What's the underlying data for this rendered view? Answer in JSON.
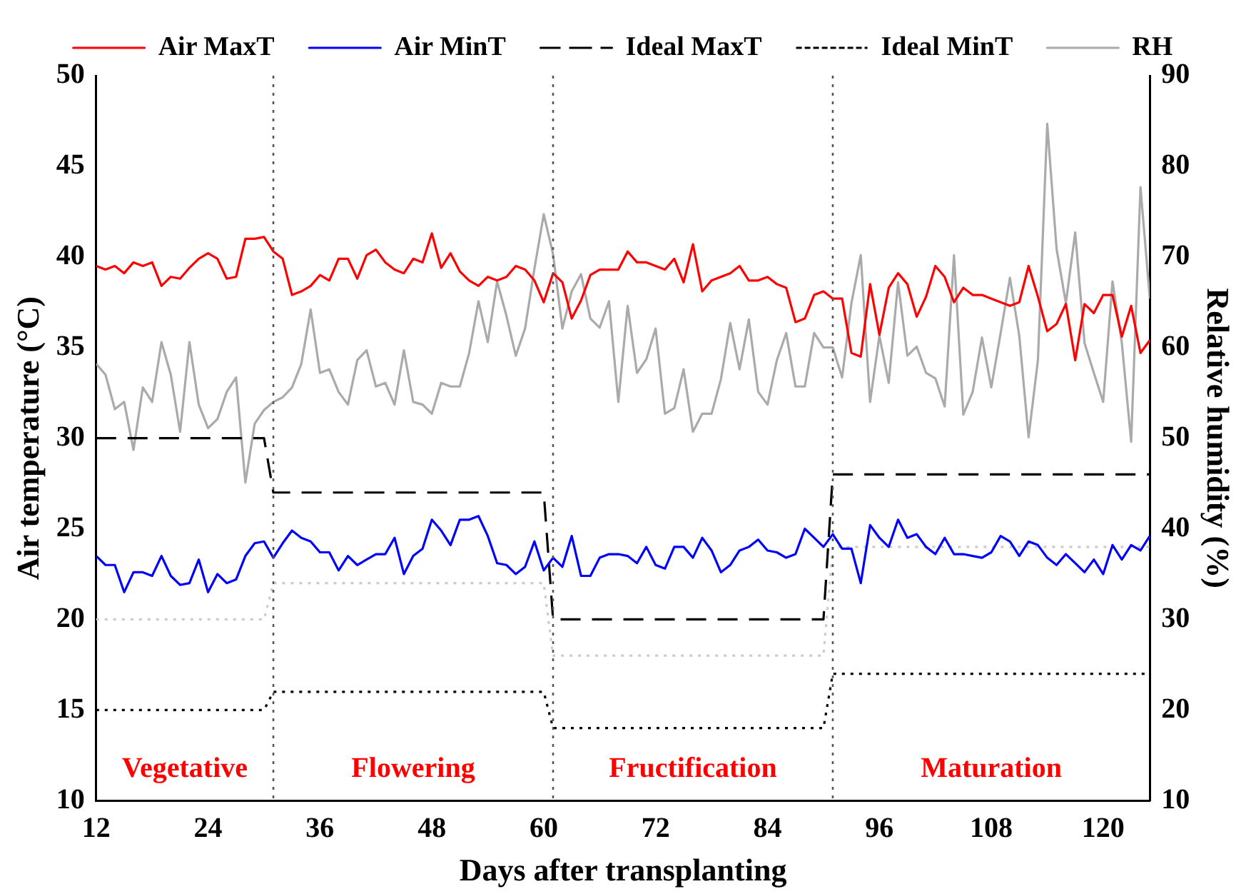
{
  "chart_data": {
    "type": "line",
    "xlabel": "Days after transplanting",
    "ylabel": "Air temperature (°C)",
    "y2label": "Relative humidity (%)",
    "x": [
      12,
      13,
      14,
      15,
      16,
      17,
      18,
      19,
      20,
      21,
      22,
      23,
      24,
      25,
      26,
      27,
      28,
      29,
      30,
      31,
      32,
      33,
      34,
      35,
      36,
      37,
      38,
      39,
      40,
      41,
      42,
      43,
      44,
      45,
      46,
      47,
      48,
      49,
      50,
      51,
      52,
      53,
      54,
      55,
      56,
      57,
      58,
      59,
      60,
      61,
      62,
      63,
      64,
      65,
      66,
      67,
      68,
      69,
      70,
      71,
      72,
      73,
      74,
      75,
      76,
      77,
      78,
      79,
      80,
      81,
      82,
      83,
      84,
      85,
      86,
      87,
      88,
      89,
      90,
      91,
      92,
      93,
      94,
      95,
      96,
      97,
      98,
      99,
      100,
      101,
      102,
      103,
      104,
      105,
      106,
      107,
      108,
      109,
      110,
      111,
      112,
      113,
      114,
      115,
      116,
      117,
      118,
      119,
      120,
      121,
      122,
      123,
      124,
      125
    ],
    "series": [
      {
        "name": "Air MaxT",
        "color": "#ff0000",
        "line_style": "solid",
        "values": [
          39.5,
          39.3,
          39.5,
          39.1,
          39.7,
          39.5,
          39.7,
          38.4,
          38.9,
          38.8,
          39.4,
          39.9,
          40.2,
          39.9,
          38.8,
          38.9,
          41.0,
          41.0,
          41.1,
          40.3,
          39.9,
          37.9,
          38.1,
          38.4,
          39.0,
          38.7,
          39.9,
          39.9,
          38.8,
          40.1,
          40.4,
          39.7,
          39.3,
          39.1,
          39.9,
          39.7,
          41.3,
          39.4,
          40.2,
          39.2,
          38.7,
          38.4,
          38.9,
          38.7,
          38.9,
          39.5,
          39.3,
          38.7,
          37.5,
          39.1,
          38.6,
          36.6,
          37.6,
          39.0,
          39.3,
          39.3,
          39.3,
          40.3,
          39.7,
          39.7,
          39.5,
          39.3,
          39.9,
          38.6,
          40.7,
          38.1,
          38.7,
          38.9,
          39.1,
          39.5,
          38.7,
          38.7,
          38.9,
          38.5,
          38.3,
          36.4,
          36.6,
          37.9,
          38.1,
          37.7,
          37.7,
          34.7,
          34.5,
          38.5,
          35.7,
          38.3,
          39.1,
          38.5,
          36.7,
          37.8,
          39.5,
          38.9,
          37.5,
          38.3,
          37.9,
          37.9,
          37.7,
          37.5,
          37.3,
          37.5,
          39.5,
          37.8,
          35.9,
          36.3,
          37.4,
          34.3,
          37.4,
          36.9,
          37.9,
          37.9,
          35.6,
          37.3,
          34.7,
          35.4
        ]
      },
      {
        "name": "Air MinT",
        "color": "#0000ff",
        "line_style": "solid",
        "values": [
          23.5,
          23.0,
          23.0,
          21.5,
          22.6,
          22.6,
          22.4,
          23.5,
          22.4,
          21.9,
          22.0,
          23.3,
          21.5,
          22.5,
          22.0,
          22.2,
          23.5,
          24.2,
          24.3,
          23.4,
          24.2,
          24.9,
          24.5,
          24.3,
          23.7,
          23.7,
          22.7,
          23.5,
          23.0,
          23.3,
          23.6,
          23.6,
          24.5,
          22.5,
          23.5,
          23.9,
          25.5,
          24.9,
          24.1,
          25.5,
          25.5,
          25.7,
          24.6,
          23.1,
          23.0,
          22.5,
          22.9,
          24.3,
          22.7,
          23.4,
          22.9,
          24.6,
          22.4,
          22.4,
          23.4,
          23.6,
          23.6,
          23.5,
          23.1,
          24.0,
          23.0,
          22.8,
          24.0,
          24.0,
          23.4,
          24.5,
          23.8,
          22.6,
          23.0,
          23.8,
          24.0,
          24.4,
          23.8,
          23.7,
          23.4,
          23.6,
          25.0,
          24.5,
          24.0,
          24.7,
          23.9,
          23.9,
          22.0,
          25.2,
          24.5,
          24.0,
          25.5,
          24.5,
          24.7,
          24.0,
          23.6,
          24.5,
          23.6,
          23.6,
          23.5,
          23.4,
          23.7,
          24.6,
          24.3,
          23.5,
          24.3,
          24.1,
          23.4,
          23.0,
          23.6,
          23.1,
          22.6,
          23.3,
          22.5,
          24.1,
          23.3,
          24.1,
          23.8,
          24.6
        ]
      },
      {
        "name": "Ideal MaxT",
        "color": "#000000",
        "line_style": "dashed",
        "x": [
          12,
          30,
          31,
          60,
          61,
          90,
          91,
          125
        ],
        "values": [
          30,
          30,
          27,
          27,
          20,
          20,
          28,
          28
        ]
      },
      {
        "name": "Ideal MinT",
        "color": "#000000",
        "line_style": "dotted",
        "x": [
          12,
          30,
          31,
          60,
          61,
          90,
          91,
          125
        ],
        "values": [
          15,
          15,
          16,
          16,
          14,
          14,
          17,
          17
        ]
      },
      {
        "color": "#cccccc",
        "line_style": "dotted",
        "x": [
          12,
          30,
          31,
          60,
          61,
          90,
          91,
          125
        ],
        "values": [
          20,
          20,
          22,
          22,
          18,
          18,
          24,
          24
        ]
      },
      {
        "name": "RH",
        "color": "#aaaaaa",
        "line_style": "solid",
        "axis": "y2",
        "values": [
          58.2,
          57.0,
          53.2,
          54.0,
          48.7,
          55.6,
          54.0,
          60.6,
          57.0,
          50.7,
          60.6,
          53.7,
          51.1,
          52.1,
          55.1,
          56.7,
          45.1,
          51.6,
          53.1,
          54.0,
          54.5,
          55.6,
          58.2,
          64.2,
          57.2,
          57.6,
          55.1,
          53.7,
          58.6,
          59.7,
          55.7,
          56.1,
          53.7,
          59.7,
          54.0,
          53.7,
          52.7,
          56.1,
          55.7,
          55.7,
          59.4,
          65.1,
          60.6,
          67.3,
          63.5,
          59.1,
          62.1,
          68.7,
          74.7,
          70.3,
          62.1,
          66.2,
          68.1,
          63.2,
          62.2,
          65.1,
          54.0,
          64.6,
          57.2,
          58.7,
          62.1,
          52.7,
          53.3,
          57.6,
          50.7,
          52.7,
          52.7,
          56.5,
          62.7,
          57.6,
          63.1,
          55.1,
          53.7,
          58.6,
          61.6,
          55.7,
          55.7,
          61.6,
          60.0,
          60.0,
          56.7,
          64.9,
          70.2,
          54.0,
          61.3,
          56.1,
          67.2,
          59.1,
          60.1,
          57.2,
          56.6,
          53.5,
          70.2,
          52.6,
          55.1,
          61.1,
          55.6,
          61.6,
          67.7,
          61.3,
          50.1,
          58.6,
          84.7,
          70.9,
          64.9,
          72.7,
          60.5,
          57.2,
          54.0,
          67.3,
          60.5,
          49.6,
          77.7,
          65.4
        ]
      }
    ],
    "xlim": [
      12,
      125
    ],
    "xticks": [
      12,
      24,
      36,
      48,
      60,
      72,
      84,
      96,
      108,
      120
    ],
    "ylim": [
      10,
      50
    ],
    "yticks": [
      10,
      15,
      20,
      25,
      30,
      35,
      40,
      45,
      50
    ],
    "y2lim": [
      10,
      90
    ],
    "y2ticks": [
      10,
      20,
      30,
      40,
      50,
      60,
      70,
      80,
      90
    ],
    "ref_lines": [
      {
        "axis": "x",
        "value": 31,
        "color": "#555555",
        "line_style": "dotted"
      },
      {
        "axis": "x",
        "value": 61,
        "color": "#555555",
        "line_style": "dotted"
      },
      {
        "axis": "x",
        "value": 91,
        "color": "#555555",
        "line_style": "dotted"
      }
    ],
    "annotations": [
      "Vegetative",
      "Flowering",
      "Fructification",
      "Maturation"
    ],
    "legend": "top",
    "grid": false,
    "marker": "none"
  }
}
